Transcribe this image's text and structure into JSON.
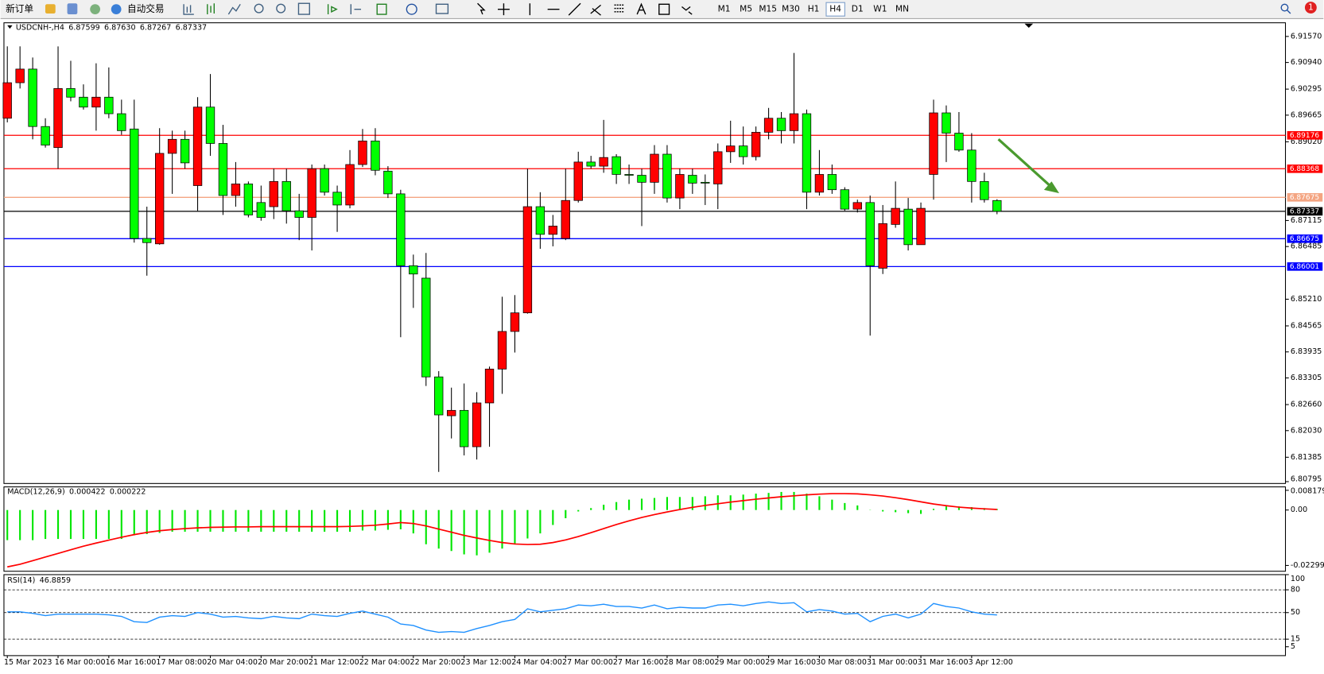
{
  "toolbar": {
    "new_order": "新订单",
    "auto_trading": "自动交易",
    "timeframes": [
      "M1",
      "M5",
      "M15",
      "M30",
      "H1",
      "H4",
      "D1",
      "W1",
      "MN"
    ],
    "active_timeframe": "H4",
    "notifications": "1"
  },
  "chart_data": [
    {
      "type": "candlestick",
      "title": "USDCNH-,H4",
      "ohlc_labels": [
        "6.87599",
        "6.87630",
        "6.87267",
        "6.87337"
      ],
      "categories": [
        "15 Mar 2023",
        null,
        null,
        null,
        "16 Mar 00:00",
        null,
        null,
        null,
        "16 Mar 16:00",
        null,
        null,
        null,
        "17 Mar 08:00",
        null,
        null,
        null,
        "20 Mar 04:00",
        null,
        null,
        null,
        "20 Mar 20:00",
        null,
        null,
        null,
        "21 Mar 12:00",
        null,
        null,
        null,
        "22 Mar 04:00",
        null,
        null,
        null,
        "22 Mar 20:00",
        null,
        null,
        null,
        "23 Mar 12:00",
        null,
        null,
        null,
        "24 Mar 04:00",
        null,
        null,
        null,
        "27 Mar 00:00",
        null,
        null,
        null,
        "27 Mar 16:00",
        null,
        null,
        null,
        "28 Mar 08:00",
        null,
        null,
        null,
        "29 Mar 00:00",
        null,
        null,
        null,
        "29 Mar 16:00",
        null,
        null,
        null,
        "30 Mar 08:00",
        null,
        null,
        null,
        "31 Mar 00:00",
        null,
        null,
        null,
        "31 Mar 16:00",
        null,
        null,
        null,
        "3 Apr 12:00",
        null,
        null
      ],
      "open": [
        6.8959,
        6.9045,
        6.9078,
        6.8939,
        6.8888,
        6.9031,
        6.901,
        6.8986,
        6.901,
        6.897,
        6.8933,
        6.8668,
        6.8655,
        6.8874,
        6.8908,
        6.8796,
        6.8986,
        6.8898,
        6.8772,
        6.88,
        6.8755,
        6.8745,
        6.8806,
        6.8735,
        6.8719,
        6.8837,
        6.878,
        6.8749,
        6.8847,
        6.8904,
        6.8831,
        6.8776,
        6.8602,
        6.8572,
        6.8333,
        6.8239,
        6.8252,
        6.8164,
        6.827,
        6.8352,
        6.8443,
        6.8488,
        6.8745,
        6.8678,
        6.8668,
        6.876,
        6.8853,
        6.8843,
        6.8866,
        6.8823,
        6.8821,
        6.8804,
        6.8872,
        6.8766,
        6.8821,
        6.8804,
        6.88,
        6.8878,
        6.8892,
        6.8866,
        6.8925,
        6.8959,
        6.8929,
        6.897,
        6.878,
        6.8823,
        6.8786,
        6.8739,
        6.8755,
        6.8596,
        6.8702,
        6.8739,
        6.8653,
        6.8823,
        6.8972,
        6.8923,
        6.8882,
        6.8806,
        6.87599
      ],
      "high": [
        6.9133,
        6.9133,
        6.9106,
        6.8959,
        6.9133,
        6.9098,
        6.9041,
        6.9092,
        6.9082,
        6.9004,
        6.9004,
        6.8745,
        6.8935,
        6.8929,
        6.8929,
        6.901,
        6.9066,
        6.8943,
        6.8853,
        6.8806,
        6.8796,
        6.8837,
        6.8837,
        6.8776,
        6.8847,
        6.8847,
        6.8796,
        6.8882,
        6.8933,
        6.8935,
        6.8843,
        6.8786,
        6.8629,
        6.8633,
        6.8347,
        6.8307,
        6.8317,
        6.8296,
        6.8358,
        6.8527,
        6.8531,
        6.8837,
        6.878,
        6.8725,
        6.8837,
        6.8878,
        6.8868,
        6.8955,
        6.8872,
        6.8847,
        6.8837,
        6.8894,
        6.8894,
        6.8837,
        6.8837,
        6.8823,
        6.8898,
        6.8953,
        6.8939,
        6.8939,
        6.8984,
        6.8974,
        6.9117,
        6.898,
        6.8882,
        6.8847,
        6.8792,
        6.8762,
        6.8772,
        6.8749,
        6.8806,
        6.8766,
        6.8755,
        6.9004,
        6.899,
        6.8974,
        6.8923,
        6.8827,
        6.8763
      ],
      "low": [
        6.8949,
        6.9031,
        6.8908,
        6.8888,
        6.8837,
        6.9,
        6.898,
        6.8929,
        6.8959,
        6.8919,
        6.8658,
        6.8578,
        6.8653,
        6.8776,
        6.8837,
        6.8735,
        6.8868,
        6.8725,
        6.8745,
        6.8719,
        6.8711,
        6.8715,
        6.8704,
        6.8664,
        6.8639,
        6.8772,
        6.8684,
        6.8741,
        6.8841,
        6.8821,
        6.8766,
        6.8429,
        6.85,
        6.8311,
        6.8103,
        6.8184,
        6.8143,
        6.8133,
        6.8164,
        6.8292,
        6.8392,
        6.8486,
        6.8643,
        6.8649,
        6.8664,
        6.8755,
        6.8837,
        6.8827,
        6.88,
        6.88,
        6.8698,
        6.8776,
        6.8755,
        6.8739,
        6.8776,
        6.8749,
        6.8739,
        6.8851,
        6.8847,
        6.8857,
        6.8908,
        6.8898,
        6.8898,
        6.8739,
        6.8772,
        6.8776,
        6.8735,
        6.8731,
        6.8433,
        6.8582,
        6.8694,
        6.8639,
        6.8653,
        6.8762,
        6.8853,
        6.8878,
        6.8755,
        6.8755,
        6.87267
      ],
      "close": [
        6.9045,
        6.9078,
        6.8939,
        6.8894,
        6.9031,
        6.901,
        6.8986,
        6.901,
        6.897,
        6.8929,
        6.8668,
        6.8658,
        6.8874,
        6.8908,
        6.8851,
        6.8986,
        6.8898,
        6.8772,
        6.88,
        6.8725,
        6.8719,
        6.8806,
        6.8735,
        6.8719,
        6.8837,
        6.878,
        6.8749,
        6.8847,
        6.8904,
        6.8833,
        6.8776,
        6.8602,
        6.8582,
        6.8333,
        6.8241,
        6.8252,
        6.8164,
        6.827,
        6.8352,
        6.8443,
        6.8488,
        6.8745,
        6.8678,
        6.8698,
        6.876,
        6.8853,
        6.8843,
        6.8864,
        6.8823,
        6.8821,
        6.8804,
        6.8872,
        6.8766,
        6.8823,
        6.8802,
        6.8802,
        6.8878,
        6.8892,
        6.8866,
        6.8925,
        6.8959,
        6.8929,
        6.897,
        6.878,
        6.8823,
        6.8786,
        6.8739,
        6.8755,
        6.8602,
        6.8704,
        6.8741,
        6.8653,
        6.8741,
        6.8972,
        6.8923,
        6.8882,
        6.8806,
        6.8762,
        6.87337
      ],
      "up_color": "#ff0000",
      "down_color": "#00ff00",
      "wick_color": "#000000",
      "ylim": [
        6.8075,
        6.9188
      ],
      "yticks": [
        {
          "value": 6.9157,
          "label": "6.91570"
        },
        {
          "value": 6.9094,
          "label": "6.90940"
        },
        6.90295,
        6.89665,
        {
          "value": 6.8902,
          "label": "6.89020"
        },
        6.87115,
        6.86485,
        {
          "value": 6.8521,
          "label": "6.85210"
        },
        6.84565,
        6.83935,
        6.83305,
        {
          "value": 6.8266,
          "label": "6.82660"
        },
        {
          "value": 6.8203,
          "label": "6.82030"
        },
        6.81385,
        6.80795
      ],
      "levels": [
        {
          "value": 6.89176,
          "color": "#ff0000"
        },
        {
          "value": 6.88368,
          "color": "#ff0000"
        },
        {
          "value": 6.87675,
          "color": "#f4a582"
        },
        {
          "value": 6.87337,
          "color": "#000000"
        },
        {
          "value": 6.86675,
          "color": "#0000ff"
        },
        {
          "value": 6.86001,
          "color": "#0000ff"
        }
      ]
    },
    {
      "type": "macd",
      "title": "MACD(12,26,9)",
      "ylim": [
        -0.0254,
        0.0096
      ],
      "yticks": [
        0.008179,
        {
          "value": 0,
          "label": "0.00"
        },
        -0.022999
      ],
      "series": [
        {
          "style": "histogram",
          "color": "#00e600",
          "values": [
            -0.0125,
            -0.0125,
            -0.0125,
            -0.012,
            -0.012,
            -0.012,
            -0.012,
            -0.012,
            -0.012,
            -0.012,
            -0.0105,
            -0.01,
            -0.0095,
            -0.009,
            -0.009,
            -0.009,
            -0.009,
            -0.009,
            -0.009,
            -0.009,
            -0.009,
            -0.009,
            -0.009,
            -0.009,
            -0.009,
            -0.009,
            -0.009,
            -0.009,
            -0.0085,
            -0.0085,
            -0.0082,
            -0.008,
            -0.0097,
            -0.0142,
            -0.016,
            -0.017,
            -0.0184,
            -0.0188,
            -0.0177,
            -0.016,
            -0.0142,
            -0.0118,
            -0.0097,
            -0.0062,
            -0.0034,
            -0.0006,
            0.0008,
            0.0022,
            0.0033,
            0.0043,
            0.0047,
            0.005,
            0.0054,
            0.0054,
            0.0054,
            0.0057,
            0.0061,
            0.0061,
            0.0064,
            0.0068,
            0.0071,
            0.0075,
            0.0075,
            0.0068,
            0.0057,
            0.0043,
            0.0029,
            0.0019,
            0.0001,
            -0.0006,
            -0.0009,
            -0.0013,
            -0.0016,
            0.0005,
            0.0015,
            0.0015,
            0.0012,
            0.0008,
            0.000422
          ]
        },
        {
          "style": "line",
          "color": "#ff0000",
          "values": [
            -0.0236,
            -0.0225,
            -0.021,
            -0.0195,
            -0.018,
            -0.0165,
            -0.015,
            -0.0137,
            -0.0125,
            -0.0113,
            -0.0102,
            -0.0093,
            -0.0086,
            -0.0081,
            -0.0077,
            -0.0074,
            -0.0072,
            -0.0071,
            -0.007,
            -0.007,
            -0.0069,
            -0.0069,
            -0.0069,
            -0.0069,
            -0.0069,
            -0.0069,
            -0.0069,
            -0.0068,
            -0.0066,
            -0.0063,
            -0.0058,
            -0.0052,
            -0.0056,
            -0.0066,
            -0.0079,
            -0.0092,
            -0.0105,
            -0.0116,
            -0.0126,
            -0.0135,
            -0.0141,
            -0.0143,
            -0.0142,
            -0.0135,
            -0.0124,
            -0.011,
            -0.0094,
            -0.0077,
            -0.006,
            -0.0045,
            -0.0031,
            -0.0019,
            -0.0008,
            0.0002,
            0.0011,
            0.0019,
            0.0026,
            0.0033,
            0.0039,
            0.0045,
            0.005,
            0.0055,
            0.0059,
            0.0063,
            0.0066,
            0.0068,
            0.0068,
            0.0067,
            0.0063,
            0.0058,
            0.0051,
            0.0043,
            0.0034,
            0.0025,
            0.0018,
            0.0012,
            0.0008,
            0.0005,
            0.000222
          ]
        }
      ]
    },
    {
      "type": "line",
      "title": "RSI(14)",
      "color": "#1e90ff",
      "ylim": [
        -6.7,
        100
      ],
      "yticks": [
        100,
        80,
        50,
        15,
        5
      ],
      "levels": [
        80,
        50,
        15
      ],
      "values": [
        51,
        51,
        49,
        46,
        48,
        48,
        48,
        48,
        47,
        45,
        38,
        37,
        44,
        46,
        45,
        50,
        48,
        44,
        45,
        43,
        42,
        45,
        43,
        42,
        48,
        46,
        45,
        49,
        52,
        48,
        44,
        35,
        33,
        27,
        24,
        25,
        24,
        29,
        33,
        38,
        41,
        55,
        51,
        53,
        55,
        60,
        59,
        61,
        58,
        58,
        56,
        60,
        55,
        57,
        56,
        56,
        60,
        61,
        59,
        62,
        64,
        62,
        63,
        51,
        54,
        52,
        48,
        49,
        38,
        45,
        48,
        43,
        48,
        62,
        58,
        56,
        51,
        48,
        46.8859
      ]
    }
  ]
}
